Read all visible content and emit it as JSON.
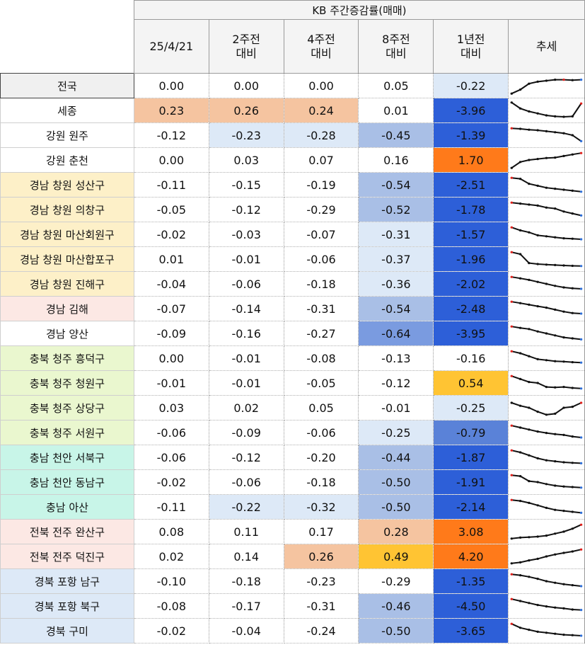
{
  "header": {
    "title": "KB 주간증감률(매매)",
    "columns": [
      {
        "line1": "25/4/21",
        "line2": ""
      },
      {
        "line1": "2주전",
        "line2": "대비"
      },
      {
        "line1": "4주전",
        "line2": "대비"
      },
      {
        "line1": "8주전",
        "line2": "대비"
      },
      {
        "line1": "1년전",
        "line2": "대비"
      },
      {
        "line1": "추세",
        "line2": ""
      }
    ]
  },
  "rows": [
    {
      "region": "전국",
      "region_bg": "#f0f0f0",
      "values": [
        "0.00",
        "0.00",
        "0.00",
        "0.05",
        "-0.22"
      ],
      "colors": [
        "",
        "",
        "",
        "",
        "#dde9f7"
      ],
      "trend": [
        0.1,
        0.3,
        0.6,
        0.7,
        0.75,
        0.8,
        0.8,
        0.78,
        0.8
      ],
      "trend_hi": 6
    },
    {
      "region": "세종",
      "region_bg": "#ffffff",
      "values": [
        "0.23",
        "0.26",
        "0.24",
        "0.01",
        "-3.96"
      ],
      "colors": [
        "#f5c4a0",
        "#f5c4a0",
        "#f5c4a0",
        "",
        "#2d5fd8"
      ],
      "trend": [
        0.9,
        0.6,
        0.45,
        0.35,
        0.25,
        0.2,
        0.18,
        0.2,
        0.85
      ],
      "trend_hi": 8
    },
    {
      "region": "강원 원주",
      "region_bg": "#ffffff",
      "values": [
        "-0.12",
        "-0.23",
        "-0.28",
        "-0.45",
        "-1.39"
      ],
      "colors": [
        "",
        "#dde9f7",
        "#dde9f7",
        "#a9bfe6",
        "#2d5fd8"
      ],
      "trend": [
        0.85,
        0.82,
        0.78,
        0.75,
        0.7,
        0.65,
        0.6,
        0.5,
        0.2
      ],
      "trend_hi": 0
    },
    {
      "region": "강원 춘천",
      "region_bg": "#ffffff",
      "values": [
        "0.00",
        "0.03",
        "0.07",
        "0.16",
        "1.70"
      ],
      "colors": [
        "",
        "",
        "",
        "",
        "#ff7a1a"
      ],
      "trend": [
        0.1,
        0.4,
        0.5,
        0.55,
        0.6,
        0.62,
        0.7,
        0.78,
        0.85
      ],
      "trend_hi": 8
    },
    {
      "region": "경남 창원 성산구",
      "region_bg": "#fdf0c8",
      "values": [
        "-0.11",
        "-0.15",
        "-0.19",
        "-0.54",
        "-2.51"
      ],
      "colors": [
        "",
        "",
        "",
        "#a9bfe6",
        "#2d5fd8"
      ],
      "trend": [
        0.85,
        0.8,
        0.55,
        0.45,
        0.35,
        0.3,
        0.25,
        0.2,
        0.15
      ],
      "trend_hi": 0
    },
    {
      "region": "경남 창원 의창구",
      "region_bg": "#fdf0c8",
      "values": [
        "-0.05",
        "-0.12",
        "-0.29",
        "-0.52",
        "-1.78"
      ],
      "colors": [
        "",
        "",
        "",
        "#a9bfe6",
        "#2d5fd8"
      ],
      "trend": [
        0.85,
        0.8,
        0.75,
        0.7,
        0.6,
        0.55,
        0.4,
        0.3,
        0.2
      ],
      "trend_hi": 0
    },
    {
      "region": "경남 창원 마산회원구",
      "region_bg": "#fdf0c8",
      "values": [
        "-0.02",
        "-0.03",
        "-0.07",
        "-0.31",
        "-1.57"
      ],
      "colors": [
        "",
        "",
        "",
        "#dde9f7",
        "#2d5fd8"
      ],
      "trend": [
        0.85,
        0.7,
        0.6,
        0.45,
        0.4,
        0.35,
        0.3,
        0.28,
        0.25
      ],
      "trend_hi": 0
    },
    {
      "region": "경남 창원 마산합포구",
      "region_bg": "#fdf0c8",
      "values": [
        "0.01",
        "-0.01",
        "-0.06",
        "-0.37",
        "-1.96"
      ],
      "colors": [
        "",
        "",
        "",
        "#dde9f7",
        "#2d5fd8"
      ],
      "trend": [
        0.85,
        0.75,
        0.3,
        0.25,
        0.22,
        0.2,
        0.18,
        0.16,
        0.15
      ],
      "trend_hi": 0
    },
    {
      "region": "경남 창원 진해구",
      "region_bg": "#fdf0c8",
      "values": [
        "-0.04",
        "-0.06",
        "-0.18",
        "-0.36",
        "-2.02"
      ],
      "colors": [
        "",
        "",
        "",
        "#dde9f7",
        "#2d5fd8"
      ],
      "trend": [
        0.85,
        0.78,
        0.7,
        0.6,
        0.5,
        0.4,
        0.32,
        0.28,
        0.25
      ],
      "trend_hi": 0
    },
    {
      "region": "경남 김해",
      "region_bg": "#fce8e4",
      "values": [
        "-0.07",
        "-0.14",
        "-0.31",
        "-0.54",
        "-2.48"
      ],
      "colors": [
        "",
        "",
        "",
        "#a9bfe6",
        "#2d5fd8"
      ],
      "trend": [
        0.85,
        0.78,
        0.7,
        0.62,
        0.55,
        0.45,
        0.35,
        0.28,
        0.25
      ],
      "trend_hi": 0
    },
    {
      "region": "경남 양산",
      "region_bg": "#ffffff",
      "values": [
        "-0.09",
        "-0.16",
        "-0.27",
        "-0.64",
        "-3.95"
      ],
      "colors": [
        "",
        "",
        "",
        "#7a9be0",
        "#2d5fd8"
      ],
      "trend": [
        0.85,
        0.78,
        0.72,
        0.6,
        0.5,
        0.4,
        0.3,
        0.25,
        0.2
      ],
      "trend_hi": 0
    },
    {
      "region": "충북 청주 흥덕구",
      "region_bg": "#eaf7cf",
      "values": [
        "0.00",
        "-0.01",
        "-0.08",
        "-0.13",
        "-0.16"
      ],
      "colors": [
        "",
        "",
        "",
        "",
        ""
      ],
      "trend": [
        0.85,
        0.75,
        0.6,
        0.45,
        0.4,
        0.35,
        0.33,
        0.3,
        0.28
      ],
      "trend_hi": 0
    },
    {
      "region": "충북 청주 청원구",
      "region_bg": "#eaf7cf",
      "values": [
        "-0.01",
        "-0.01",
        "-0.05",
        "-0.12",
        "0.54"
      ],
      "colors": [
        "",
        "",
        "",
        "",
        "#ffc433"
      ],
      "trend": [
        0.85,
        0.7,
        0.55,
        0.5,
        0.3,
        0.28,
        0.3,
        0.25,
        0.22
      ],
      "trend_hi": 0
    },
    {
      "region": "충북 청주 상당구",
      "region_bg": "#eaf7cf",
      "values": [
        "0.03",
        "0.02",
        "0.05",
        "-0.01",
        "-0.25"
      ],
      "colors": [
        "",
        "",
        "",
        "",
        "#dde9f7"
      ],
      "trend": [
        0.75,
        0.6,
        0.5,
        0.3,
        0.15,
        0.2,
        0.5,
        0.55,
        0.75
      ],
      "trend_hi": 8
    },
    {
      "region": "충북 청주 서원구",
      "region_bg": "#eaf7cf",
      "values": [
        "-0.06",
        "-0.09",
        "-0.06",
        "-0.25",
        "-0.79"
      ],
      "colors": [
        "",
        "",
        "",
        "#dde9f7",
        "#5a82d8"
      ],
      "trend": [
        0.85,
        0.75,
        0.65,
        0.55,
        0.48,
        0.42,
        0.38,
        0.3,
        0.25
      ],
      "trend_hi": 0
    },
    {
      "region": "충남 천안 서북구",
      "region_bg": "#c8f5e8",
      "values": [
        "-0.06",
        "-0.12",
        "-0.20",
        "-0.44",
        "-1.87"
      ],
      "colors": [
        "",
        "",
        "",
        "#a9bfe6",
        "#2d5fd8"
      ],
      "trend": [
        0.85,
        0.75,
        0.6,
        0.45,
        0.35,
        0.3,
        0.25,
        0.22,
        0.2
      ],
      "trend_hi": 0
    },
    {
      "region": "충남 천안 동남구",
      "region_bg": "#c8f5e8",
      "values": [
        "-0.02",
        "-0.06",
        "-0.18",
        "-0.50",
        "-1.91"
      ],
      "colors": [
        "",
        "",
        "",
        "#a9bfe6",
        "#2d5fd8"
      ],
      "trend": [
        0.85,
        0.8,
        0.55,
        0.5,
        0.4,
        0.32,
        0.28,
        0.25,
        0.22
      ],
      "trend_hi": 0
    },
    {
      "region": "충남 아산",
      "region_bg": "#c8f5e8",
      "values": [
        "-0.11",
        "-0.22",
        "-0.32",
        "-0.50",
        "-2.14"
      ],
      "colors": [
        "",
        "#dde9f7",
        "#dde9f7",
        "#a9bfe6",
        "#2d5fd8"
      ],
      "trend": [
        0.85,
        0.8,
        0.7,
        0.58,
        0.45,
        0.35,
        0.3,
        0.25,
        0.2
      ],
      "trend_hi": 0
    },
    {
      "region": "전북 전주 완산구",
      "region_bg": "#fce8e4",
      "values": [
        "0.08",
        "0.11",
        "0.17",
        "0.28",
        "3.08"
      ],
      "colors": [
        "",
        "",
        "",
        "#f5c4a0",
        "#ff7a1a"
      ],
      "trend": [
        0.15,
        0.2,
        0.22,
        0.25,
        0.3,
        0.4,
        0.5,
        0.65,
        0.85
      ],
      "trend_hi": 8
    },
    {
      "region": "전북 전주 덕진구",
      "region_bg": "#fce8e4",
      "values": [
        "0.02",
        "0.14",
        "0.26",
        "0.49",
        "4.20"
      ],
      "colors": [
        "",
        "",
        "#f5c4a0",
        "#ffc433",
        "#ff7a1a"
      ],
      "trend": [
        0.15,
        0.2,
        0.3,
        0.38,
        0.5,
        0.6,
        0.68,
        0.75,
        0.85
      ],
      "trend_hi": 8
    },
    {
      "region": "경북 포항 남구",
      "region_bg": "#dde9f7",
      "values": [
        "-0.10",
        "-0.18",
        "-0.23",
        "-0.29",
        "-1.35"
      ],
      "colors": [
        "",
        "",
        "",
        "",
        "#2d5fd8"
      ],
      "trend": [
        0.85,
        0.8,
        0.72,
        0.62,
        0.5,
        0.42,
        0.35,
        0.3,
        0.25
      ],
      "trend_hi": 0
    },
    {
      "region": "경북 포항 북구",
      "region_bg": "#dde9f7",
      "values": [
        "-0.08",
        "-0.17",
        "-0.31",
        "-0.46",
        "-4.50"
      ],
      "colors": [
        "",
        "",
        "",
        "#a9bfe6",
        "#2d5fd8"
      ],
      "trend": [
        0.85,
        0.75,
        0.65,
        0.55,
        0.48,
        0.42,
        0.38,
        0.32,
        0.3
      ],
      "trend_hi": 0
    },
    {
      "region": "경북 구미",
      "region_bg": "#dde9f7",
      "values": [
        "-0.02",
        "-0.04",
        "-0.24",
        "-0.50",
        "-3.65"
      ],
      "colors": [
        "",
        "",
        "",
        "#a9bfe6",
        "#2d5fd8"
      ],
      "trend": [
        0.85,
        0.65,
        0.55,
        0.45,
        0.4,
        0.35,
        0.3,
        0.28,
        0.25
      ],
      "trend_hi": 0
    }
  ]
}
